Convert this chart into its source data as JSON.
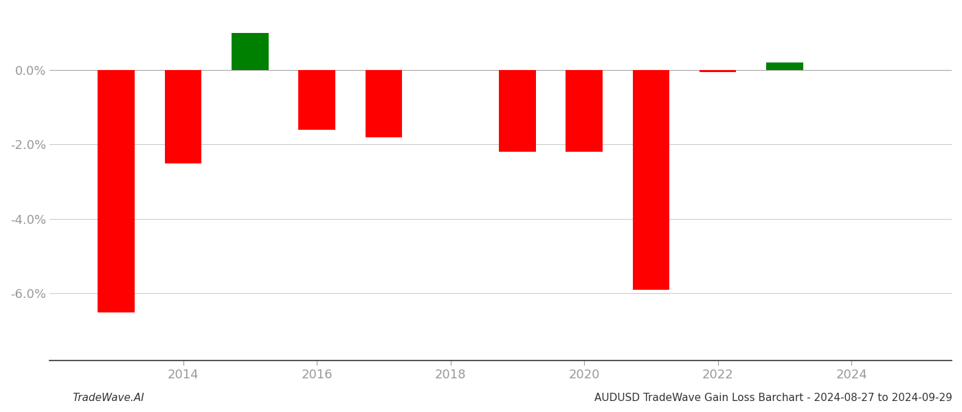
{
  "years": [
    2013,
    2014,
    2015,
    2016,
    2017,
    2019,
    2020,
    2021,
    2022,
    2023
  ],
  "values": [
    -0.065,
    -0.025,
    0.01,
    -0.016,
    -0.018,
    -0.022,
    -0.022,
    -0.059,
    -0.0005,
    0.002
  ],
  "bar_width": 0.55,
  "ylim_min": -0.078,
  "ylim_max": 0.016,
  "yticks": [
    -0.06,
    -0.04,
    -0.02,
    0.0
  ],
  "xticks": [
    2014,
    2016,
    2018,
    2020,
    2022,
    2024
  ],
  "xlim_min": 2012.0,
  "xlim_max": 2025.5,
  "color_positive": "#008000",
  "color_negative": "#ff0000",
  "background_color": "#ffffff",
  "grid_color": "#cccccc",
  "zero_line_color": "#aaaaaa",
  "spine_bottom_color": "#333333",
  "tick_color": "#999999",
  "footer_left": "TradeWave.AI",
  "footer_right": "AUDUSD TradeWave Gain Loss Barchart - 2024-08-27 to 2024-09-29",
  "footer_fontsize": 11,
  "tick_fontsize": 13
}
